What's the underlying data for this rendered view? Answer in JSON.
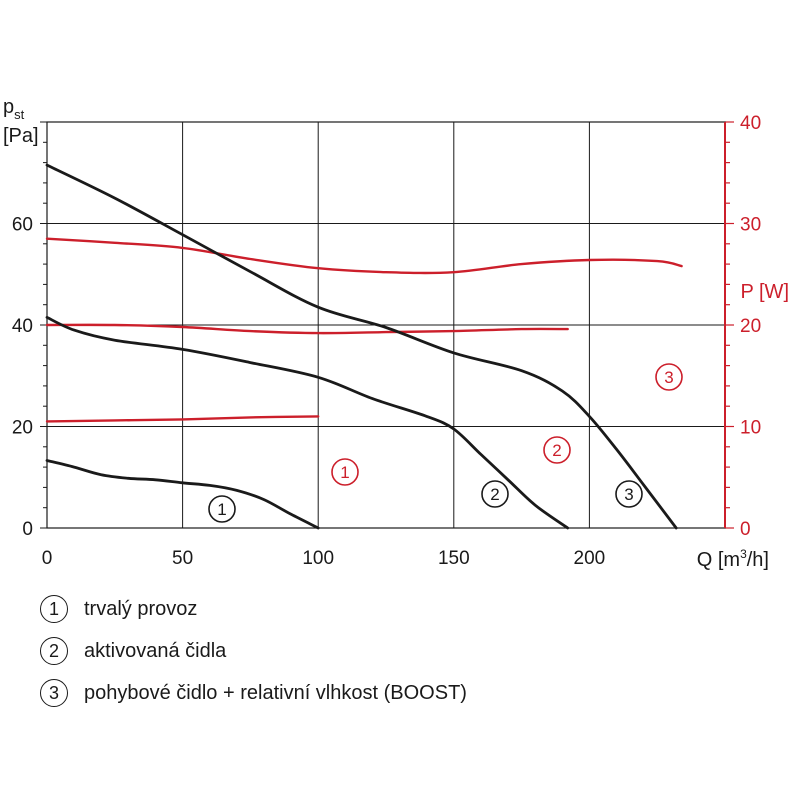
{
  "chart_data": {
    "type": "line",
    "x_axis": {
      "label_main": "Q [m",
      "label_sup": "3",
      "label_end": "/h]",
      "range": [
        0,
        250
      ],
      "ticks": [
        0,
        50,
        100,
        150,
        200
      ],
      "grid_step": 50
    },
    "y_axis_left": {
      "label_main": "p",
      "label_sub": "st",
      "unit": "[Pa]",
      "range": [
        0,
        80
      ],
      "ticks": [
        0,
        20,
        40,
        60
      ],
      "grid_step": 20,
      "minor_step": 4
    },
    "y_axis_right": {
      "label": "P [W]",
      "range": [
        0,
        40
      ],
      "ticks": [
        0,
        10,
        20,
        30,
        40
      ],
      "minor_step": 2
    },
    "grid": true,
    "colors": {
      "pressure": "#1a1a1a",
      "power": "#cc1f2b"
    },
    "pressure_series": [
      {
        "marker": "1",
        "x": [
          0,
          10,
          20,
          30,
          40,
          50,
          60,
          70,
          80,
          90,
          100
        ],
        "y": [
          13.3,
          12.0,
          10.5,
          9.8,
          9.5,
          8.9,
          8.4,
          7.4,
          5.6,
          2.7,
          0
        ]
      },
      {
        "marker": "2",
        "x": [
          0,
          10,
          25,
          50,
          75,
          100,
          120,
          140,
          150,
          160,
          170,
          180,
          192
        ],
        "y": [
          41.5,
          39.0,
          37.0,
          35.2,
          32.6,
          29.7,
          25.5,
          22.0,
          19.5,
          14.5,
          9.5,
          4.5,
          0
        ]
      },
      {
        "marker": "3",
        "x": [
          0,
          25,
          50,
          75,
          100,
          125,
          150,
          175,
          190,
          200,
          210,
          220,
          232
        ],
        "y": [
          71.5,
          65.0,
          57.8,
          50.5,
          43.5,
          39.5,
          34.5,
          31.0,
          27.0,
          22.0,
          15.5,
          8.5,
          0
        ]
      }
    ],
    "power_series": [
      {
        "marker": "1",
        "x": [
          0,
          25,
          50,
          75,
          100
        ],
        "y": [
          10.5,
          10.6,
          10.7,
          10.9,
          11.0
        ]
      },
      {
        "marker": "2",
        "x": [
          0,
          25,
          50,
          75,
          100,
          125,
          150,
          175,
          192
        ],
        "y": [
          20.0,
          20.0,
          19.8,
          19.4,
          19.2,
          19.3,
          19.4,
          19.6,
          19.6
        ]
      },
      {
        "marker": "3",
        "x": [
          0,
          25,
          50,
          75,
          100,
          125,
          150,
          175,
          200,
          225,
          234
        ],
        "y": [
          28.5,
          28.1,
          27.6,
          26.5,
          25.6,
          25.2,
          25.2,
          26.0,
          26.4,
          26.3,
          25.8
        ]
      }
    ]
  },
  "legend": [
    {
      "marker": "1",
      "label": "trvalý provoz"
    },
    {
      "marker": "2",
      "label": "aktivovaná čidla"
    },
    {
      "marker": "3",
      "label": "pohybové čidlo + relativní vlhkost (BOOST)"
    }
  ]
}
